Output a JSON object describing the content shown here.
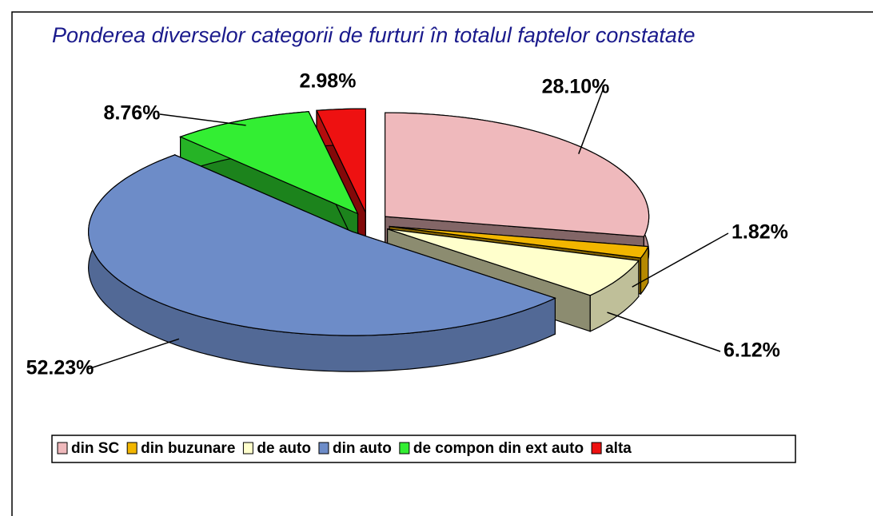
{
  "chart_data": {
    "type": "pie",
    "title": "Ponderea diverselor categorii de furturi în totalul faptelor constatate",
    "categories": [
      "din SC",
      "din buzunare",
      "de auto",
      "din auto",
      "de compon din ext auto",
      "alta"
    ],
    "values": [
      28.1,
      1.82,
      6.12,
      52.23,
      8.76,
      2.98
    ],
    "value_labels": [
      "28.10%",
      "1.82%",
      "6.12%",
      "52.23%",
      "8.76%",
      "2.98%"
    ],
    "colors": [
      "#efb9bc",
      "#f2b600",
      "#ffffcc",
      "#6d8cc8",
      "#33ee33",
      "#ee1111"
    ]
  }
}
